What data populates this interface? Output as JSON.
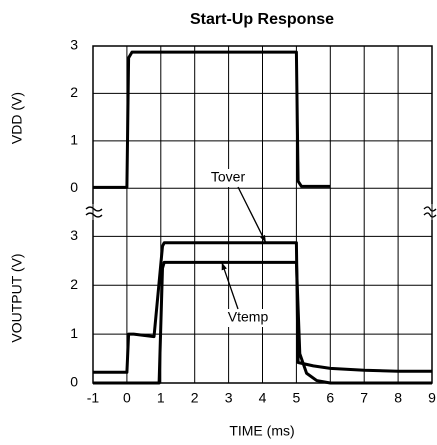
{
  "chart_data": [
    {
      "type": "line",
      "title": "Start-Up Response",
      "ylabel": "VDD (V)",
      "xlim": [
        -1,
        9
      ],
      "xticks": [
        -1,
        0,
        1,
        2,
        3,
        4,
        5,
        6,
        7,
        8,
        9
      ],
      "ylim": [
        -0.5,
        3
      ],
      "yticks": [
        0,
        1,
        2,
        3
      ],
      "grid": true,
      "series": [
        {
          "color": "#000000",
          "x": [
            -1,
            0,
            0.05,
            0.15,
            5,
            5.05,
            5.15,
            6
          ],
          "values": [
            0.02,
            0.02,
            2.75,
            2.87,
            2.87,
            0.15,
            0.04,
            0.04
          ]
        }
      ]
    },
    {
      "type": "line",
      "xlabel": "TIME (ms)",
      "ylabel": "VOUTPUT (V)",
      "xlim": [
        -1,
        9
      ],
      "xticks": [
        -1,
        0,
        1,
        2,
        3,
        4,
        5,
        6,
        7,
        8,
        9
      ],
      "ylim": [
        0,
        3.5
      ],
      "yticks": [
        0,
        1,
        2,
        3
      ],
      "grid": true,
      "series": [
        {
          "name": "Tover",
          "color": "#000000",
          "x": [
            -1,
            0,
            0.05,
            0.2,
            0.8,
            1.05,
            1.1,
            5,
            5.05,
            5.5,
            6,
            7,
            8,
            9
          ],
          "values": [
            0.22,
            0.22,
            1.0,
            1.0,
            0.95,
            2.8,
            2.87,
            2.87,
            0.42,
            0.35,
            0.3,
            0.26,
            0.24,
            0.24
          ]
        },
        {
          "name": "Vtemp",
          "color": "#000000",
          "x": [
            -1,
            0.95,
            1.05,
            1.1,
            5,
            5.1,
            5.3,
            5.6,
            6,
            9
          ],
          "values": [
            0,
            0,
            2.35,
            2.47,
            2.47,
            0.6,
            0.2,
            0.05,
            0,
            0
          ]
        }
      ]
    }
  ]
}
